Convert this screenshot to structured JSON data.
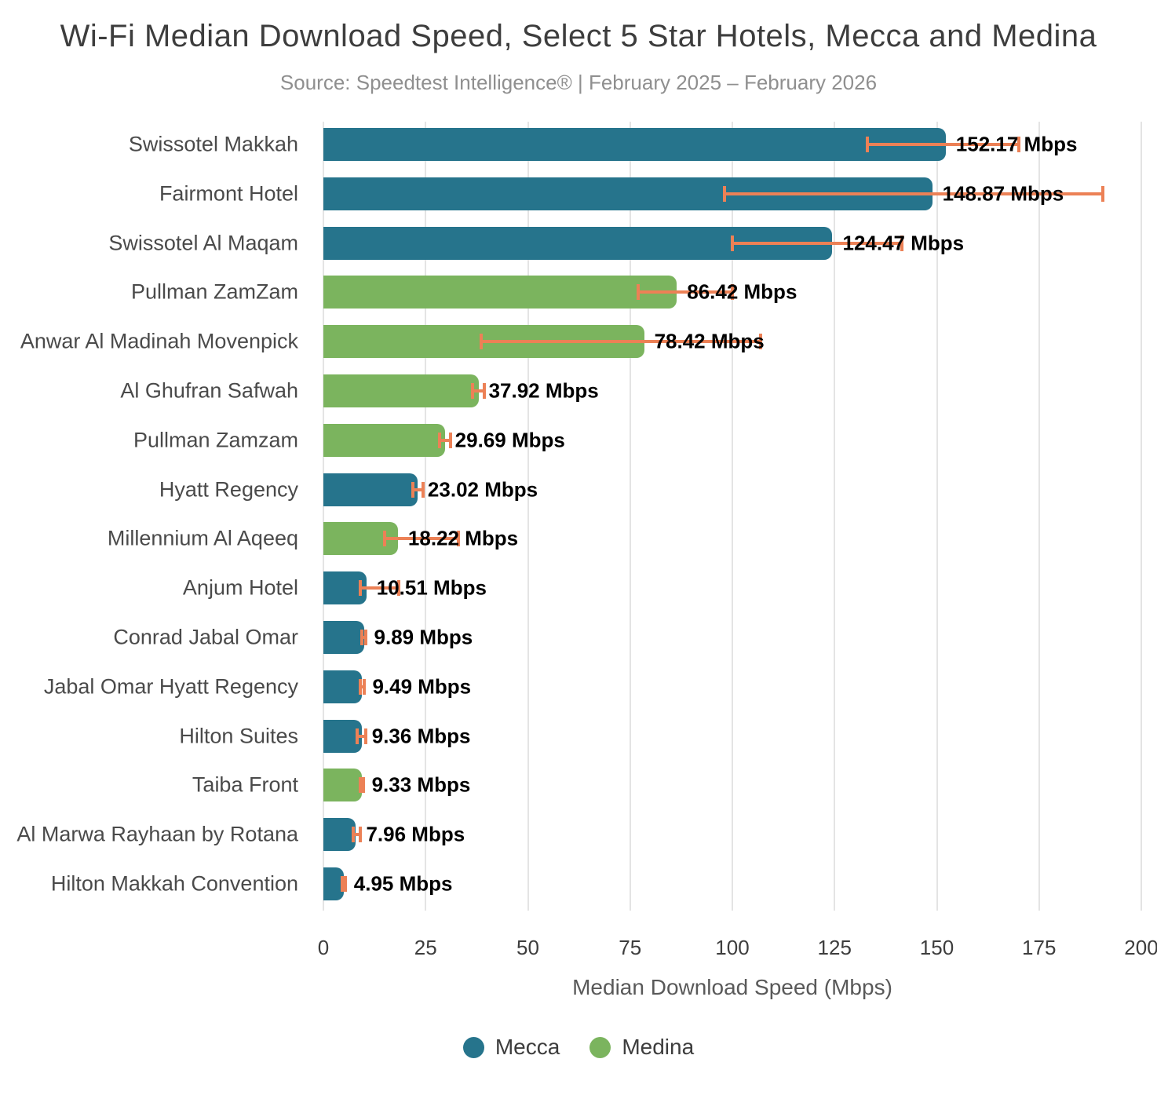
{
  "chart_data": {
    "type": "bar",
    "orientation": "horizontal",
    "title": "Wi-Fi Median Download Speed, Select 5 Star Hotels, Mecca and Medina",
    "subtitle": "Source: Speedtest Intelligence® | February 2025 – February 2026",
    "xlabel": "Median Download Speed (Mbps)",
    "unit": "Mbps",
    "xlim": [
      0,
      200
    ],
    "xticks": [
      0,
      25,
      50,
      75,
      100,
      125,
      150,
      175,
      200
    ],
    "grid": true,
    "error_bars": true,
    "legend": {
      "position": "bottom",
      "entries": [
        {
          "label": "Mecca",
          "color": "#26748C"
        },
        {
          "label": "Medina",
          "color": "#7BB45E"
        }
      ]
    },
    "bars": [
      {
        "hotel": "Swissotel Makkah",
        "city": "Mecca",
        "value": 152.17,
        "label": "152.17 Mbps",
        "error_low": 133.0,
        "error_high": 170.0
      },
      {
        "hotel": "Fairmont Hotel",
        "city": "Mecca",
        "value": 148.87,
        "label": "148.87 Mbps",
        "error_low": 98.0,
        "error_high": 190.5
      },
      {
        "hotel": "Swissotel Al Maqam",
        "city": "Mecca",
        "value": 124.47,
        "label": "124.47 Mbps",
        "error_low": 100.0,
        "error_high": 141.5
      },
      {
        "hotel": "Pullman ZamZam",
        "city": "Medina",
        "value": 86.42,
        "label": "86.42 Mbps",
        "error_low": 77.0,
        "error_high": 100.0
      },
      {
        "hotel": "Anwar Al Madinah Movenpick",
        "city": "Medina",
        "value": 78.42,
        "label": "78.42 Mbps",
        "error_low": 38.5,
        "error_high": 107.0
      },
      {
        "hotel": "Al Ghufran Safwah",
        "city": "Medina",
        "value": 37.92,
        "label": "37.92 Mbps",
        "error_low": 36.4,
        "error_high": 39.4
      },
      {
        "hotel": "Pullman Zamzam",
        "city": "Medina",
        "value": 29.69,
        "label": "29.69 Mbps",
        "error_low": 28.4,
        "error_high": 31.0
      },
      {
        "hotel": "Hyatt Regency",
        "city": "Mecca",
        "value": 23.02,
        "label": "23.02 Mbps",
        "error_low": 21.8,
        "error_high": 24.3
      },
      {
        "hotel": "Millennium Al Aqeeq",
        "city": "Medina",
        "value": 18.22,
        "label": "18.22 Mbps",
        "error_low": 15.0,
        "error_high": 33.0
      },
      {
        "hotel": "Anjum Hotel",
        "city": "Mecca",
        "value": 10.51,
        "label": "10.51 Mbps",
        "error_low": 9.0,
        "error_high": 18.5
      },
      {
        "hotel": "Conrad Jabal Omar",
        "city": "Mecca",
        "value": 9.89,
        "label": "9.89 Mbps",
        "error_low": 9.5,
        "error_high": 10.3
      },
      {
        "hotel": "Jabal Omar Hyatt Regency",
        "city": "Mecca",
        "value": 9.49,
        "label": "9.49 Mbps",
        "error_low": 9.0,
        "error_high": 10.0
      },
      {
        "hotel": "Hilton Suites",
        "city": "Mecca",
        "value": 9.36,
        "label": "9.36 Mbps",
        "error_low": 8.3,
        "error_high": 10.4
      },
      {
        "hotel": "Taiba Front",
        "city": "Medina",
        "value": 9.33,
        "label": "9.33 Mbps",
        "error_low": 9.0,
        "error_high": 9.8
      },
      {
        "hotel": "Al Marwa Rayhaan by Rotana",
        "city": "Mecca",
        "value": 7.96,
        "label": "7.96 Mbps",
        "error_low": 7.2,
        "error_high": 9.0
      },
      {
        "hotel": "Hilton Makkah Convention",
        "city": "Mecca",
        "value": 4.95,
        "label": "4.95 Mbps",
        "error_low": 4.6,
        "error_high": 5.3
      }
    ]
  },
  "colors": {
    "mecca": "#26748C",
    "medina": "#7BB45E",
    "error_bar": "#EC8156",
    "gridline": "#E4E4E4",
    "title_text": "#3D3D3D",
    "subtitle_text": "#8F8F8F",
    "axis_text": "#3D3D3D",
    "category_text": "#4A4A4A",
    "value_text": "#000000"
  }
}
